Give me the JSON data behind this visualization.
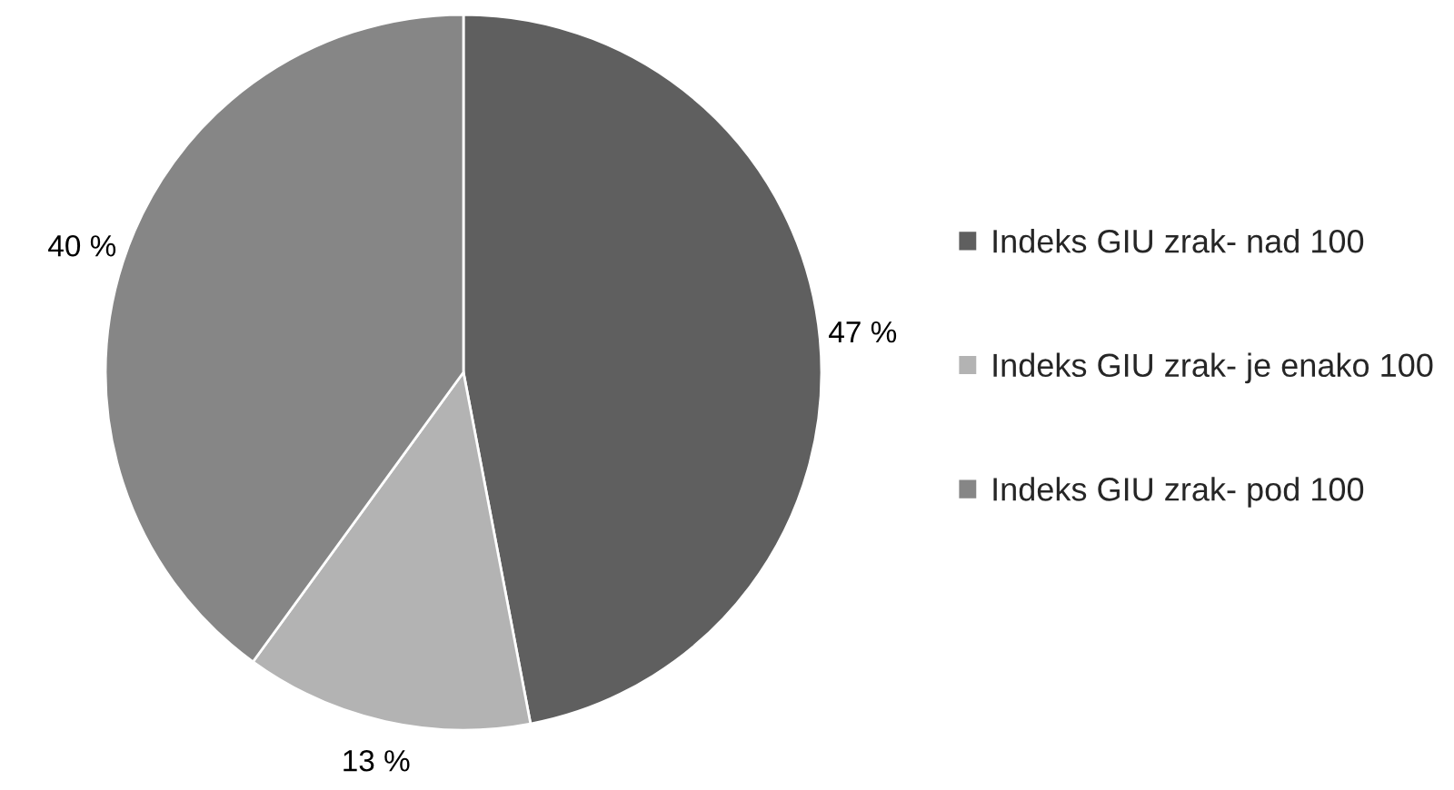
{
  "chart_data": {
    "type": "pie",
    "categories": [
      "Indeks GIU zrak- nad 100",
      "Indeks GIU zrak- je enako 100",
      "Indeks GIU zrak- pod 100"
    ],
    "values": [
      47,
      13,
      40
    ],
    "colors": [
      "#5f5f5f",
      "#b3b3b3",
      "#868686"
    ],
    "value_labels": [
      "47 %",
      "13 %",
      "40 %"
    ],
    "legend": "right"
  }
}
